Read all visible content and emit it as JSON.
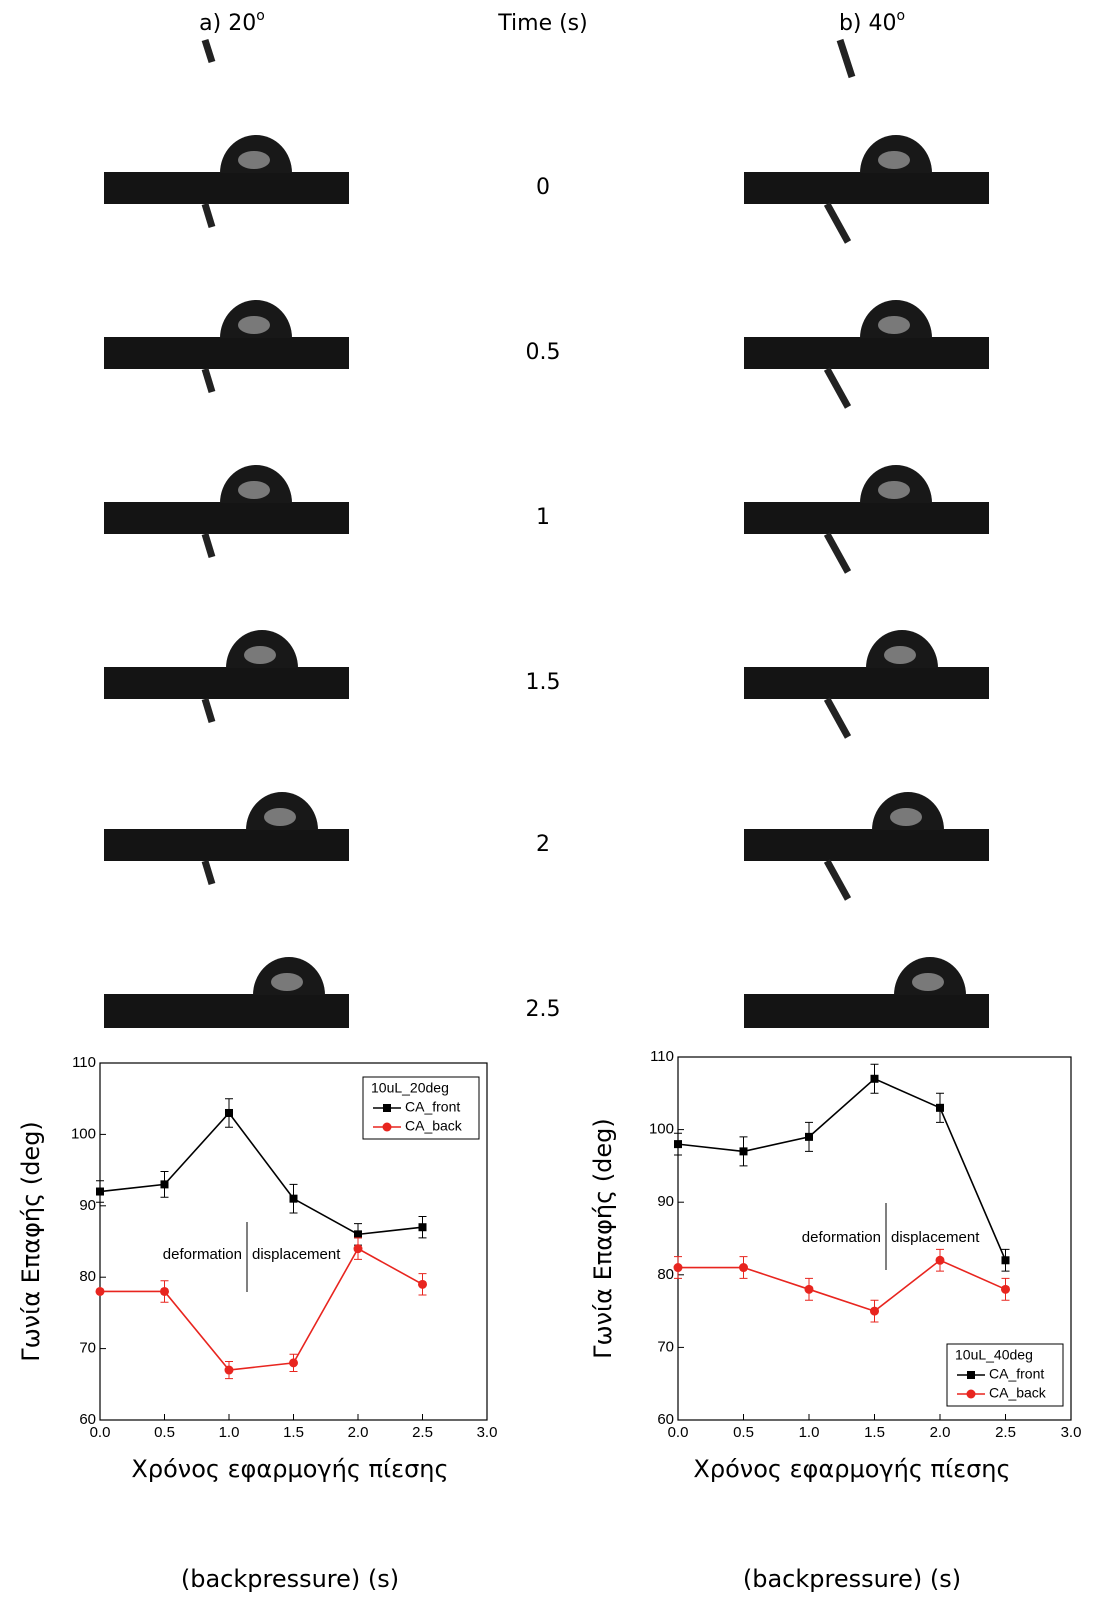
{
  "header": {
    "panel_a": {
      "label": "a) 20",
      "sup": "o"
    },
    "time": "Time (s)",
    "panel_b": {
      "label": "b) 40",
      "sup": "o"
    }
  },
  "time_labels": [
    "0",
    "0.5",
    "1",
    "1.5",
    "2",
    "2.5"
  ],
  "chart_data": [
    {
      "type": "line",
      "y_label": "Γωνία Επαφής (deg)",
      "x_label": [
        "Χρόνος εφαρμογής πίεσης",
        "(backpressure) (s)"
      ],
      "x": [
        0,
        0.5,
        1,
        1.5,
        2,
        2.5
      ],
      "series": [
        {
          "name": "CA_front",
          "color": "#000000",
          "marker": "square",
          "values": [
            92,
            93,
            103,
            91,
            86,
            87
          ],
          "errors": [
            1.5,
            1.8,
            2,
            2,
            1.5,
            1.5
          ]
        },
        {
          "name": "CA_back",
          "color": "#e8251f",
          "marker": "circle",
          "values": [
            78,
            78,
            67,
            68,
            84,
            79
          ],
          "errors": [
            0,
            1.5,
            1.2,
            1.2,
            1.5,
            1.5
          ]
        }
      ],
      "legend_title": "10uL_20deg",
      "legend": "upper right",
      "annotations": [
        "deformation",
        "displacement"
      ],
      "xlim": [
        0,
        3
      ],
      "xticks": [
        {
          "value": 0,
          "label": "0.0"
        },
        {
          "value": 0.5,
          "label": "0.5"
        },
        {
          "value": 1,
          "label": "1.0"
        },
        {
          "value": 1.5,
          "label": "1.5"
        },
        {
          "value": 2,
          "label": "2.0"
        },
        {
          "value": 2.5,
          "label": "2.5"
        },
        {
          "value": 3,
          "label": "3.0"
        }
      ],
      "ylim": [
        60,
        110
      ],
      "yticks": [
        60,
        70,
        80,
        90,
        100,
        110
      ]
    },
    {
      "type": "line",
      "y_label": "Γωνία Επαφής (deg)",
      "x_label": [
        "Χρόνος εφαρμογής πίεσης",
        "(backpressure) (s)"
      ],
      "x": [
        0,
        0.5,
        1,
        1.5,
        2,
        2.5
      ],
      "series": [
        {
          "name": "CA_front",
          "color": "#000000",
          "marker": "square",
          "values": [
            98,
            97,
            99,
            107,
            103,
            82
          ],
          "errors": [
            1.5,
            2,
            2,
            2,
            2,
            1.5
          ]
        },
        {
          "name": "CA_back",
          "color": "#e8251f",
          "marker": "circle",
          "values": [
            81,
            81,
            78,
            75,
            82,
            78
          ],
          "errors": [
            1.5,
            1.5,
            1.5,
            1.5,
            1.5,
            1.5
          ]
        }
      ],
      "legend_title": "10uL_40deg",
      "legend": "lower right",
      "annotations": [
        "deformation",
        "displacement"
      ],
      "xlim": [
        0,
        3
      ],
      "xticks": [
        {
          "value": 0,
          "label": "0.0"
        },
        {
          "value": 0.5,
          "label": "0.5"
        },
        {
          "value": 1,
          "label": "1.0"
        },
        {
          "value": 1.5,
          "label": "1.5"
        },
        {
          "value": 2,
          "label": "2.0"
        },
        {
          "value": 2.5,
          "label": "2.5"
        },
        {
          "value": 3,
          "label": "3.0"
        }
      ],
      "ylim": [
        60,
        110
      ],
      "yticks": [
        60,
        70,
        80,
        90,
        100,
        110
      ]
    }
  ]
}
